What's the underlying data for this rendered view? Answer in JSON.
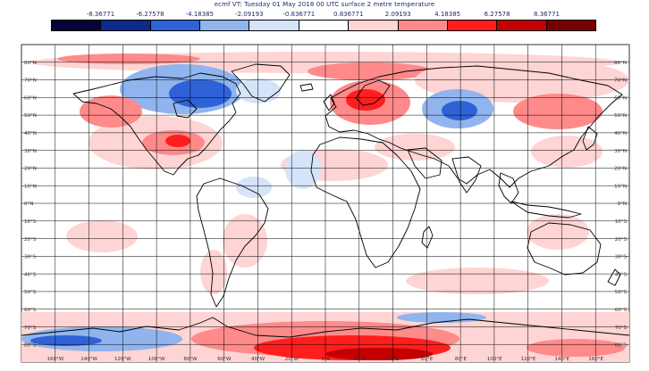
{
  "title": "ecmf VT: Tuesday 01 May 2018 00 UTC surface 2 metre temperature",
  "colorbar": {
    "labels": [
      "-8.36771",
      "-6.27578",
      "-4.18385",
      "-2.09193",
      "-0.836771",
      "0.836771",
      "2.09193",
      "4.18385",
      "6.27578",
      "8.36771"
    ],
    "colors": [
      "#04043a",
      "#0c2a8c",
      "#2f62d6",
      "#8fb4ee",
      "#d6e4fa",
      "#ffffff",
      "#ffd4d4",
      "#ff8a8a",
      "#ff1e1e",
      "#c40000",
      "#7a0000"
    ]
  },
  "map": {
    "lon_ticks": [
      "160°W",
      "140°W",
      "120°W",
      "100°W",
      "80°W",
      "60°W",
      "40°W",
      "20°W",
      "0°E",
      "20°E",
      "40°E",
      "60°E",
      "80°E",
      "100°E",
      "120°E",
      "140°E",
      "160°E"
    ],
    "lat_ticks": [
      "80°N",
      "70°N",
      "60°N",
      "50°N",
      "40°N",
      "30°N",
      "20°N",
      "10°N",
      "0°N",
      "10°S",
      "20°S",
      "30°S",
      "40°S",
      "50°S",
      "60°S",
      "70°S",
      "80°S"
    ]
  }
}
